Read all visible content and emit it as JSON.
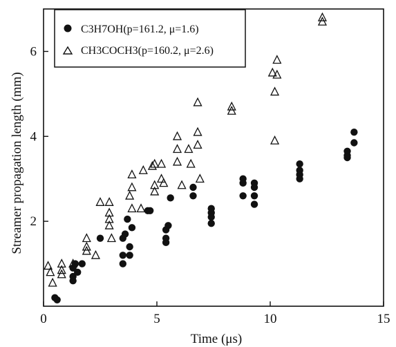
{
  "chart_data": {
    "type": "scatter",
    "title": "",
    "xlabel": "Time (μs)",
    "ylabel": "Streamer propagation length (mm)",
    "xlim": [
      0,
      15
    ],
    "ylim": [
      0,
      7
    ],
    "x_ticks": [
      0,
      5,
      10,
      15
    ],
    "y_ticks": [
      2,
      4,
      6
    ],
    "grid": false,
    "legend_position": "top-left",
    "series": [
      {
        "name": "C3H7OH(p=161.2, μ=1.6)",
        "marker": "filled-circle",
        "color": "#111111",
        "points": [
          [
            0.5,
            0.2
          ],
          [
            0.6,
            0.15
          ],
          [
            1.3,
            0.9
          ],
          [
            1.3,
            0.7
          ],
          [
            1.3,
            0.6
          ],
          [
            1.4,
            1.0
          ],
          [
            1.5,
            0.8
          ],
          [
            1.7,
            1.0
          ],
          [
            2.5,
            1.6
          ],
          [
            3.5,
            1.6
          ],
          [
            3.5,
            1.0
          ],
          [
            3.5,
            1.2
          ],
          [
            3.6,
            1.7
          ],
          [
            3.7,
            2.05
          ],
          [
            3.8,
            1.4
          ],
          [
            3.8,
            1.2
          ],
          [
            3.9,
            1.85
          ],
          [
            4.6,
            2.25
          ],
          [
            4.7,
            2.25
          ],
          [
            5.4,
            1.8
          ],
          [
            5.4,
            1.6
          ],
          [
            5.4,
            1.5
          ],
          [
            5.5,
            1.9
          ],
          [
            5.6,
            2.55
          ],
          [
            6.6,
            2.8
          ],
          [
            6.6,
            2.6
          ],
          [
            7.4,
            2.3
          ],
          [
            7.4,
            2.2
          ],
          [
            7.4,
            2.1
          ],
          [
            7.4,
            1.95
          ],
          [
            8.8,
            3.0
          ],
          [
            8.8,
            2.9
          ],
          [
            8.8,
            2.6
          ],
          [
            9.3,
            2.9
          ],
          [
            9.3,
            2.8
          ],
          [
            9.3,
            2.6
          ],
          [
            9.3,
            2.4
          ],
          [
            11.3,
            3.35
          ],
          [
            11.3,
            3.2
          ],
          [
            11.3,
            3.1
          ],
          [
            11.3,
            3.0
          ],
          [
            13.4,
            3.65
          ],
          [
            13.4,
            3.55
          ],
          [
            13.4,
            3.5
          ],
          [
            13.7,
            4.1
          ],
          [
            13.7,
            3.85
          ]
        ]
      },
      {
        "name": "CH3COCH3(p=160.2, μ=2.6)",
        "marker": "open-triangle",
        "color": "#111111",
        "points": [
          [
            0.2,
            0.95
          ],
          [
            0.3,
            0.8
          ],
          [
            0.4,
            0.55
          ],
          [
            0.8,
            1.0
          ],
          [
            0.8,
            0.85
          ],
          [
            0.8,
            0.75
          ],
          [
            1.3,
            1.0
          ],
          [
            1.9,
            1.6
          ],
          [
            1.9,
            1.4
          ],
          [
            1.9,
            1.3
          ],
          [
            2.3,
            1.2
          ],
          [
            2.5,
            2.45
          ],
          [
            2.9,
            2.45
          ],
          [
            2.9,
            2.2
          ],
          [
            2.9,
            2.05
          ],
          [
            2.9,
            1.9
          ],
          [
            3.0,
            1.6
          ],
          [
            3.8,
            2.6
          ],
          [
            3.9,
            3.1
          ],
          [
            3.9,
            2.8
          ],
          [
            3.9,
            2.3
          ],
          [
            4.3,
            2.3
          ],
          [
            4.4,
            3.2
          ],
          [
            4.8,
            3.3
          ],
          [
            4.9,
            3.35
          ],
          [
            4.9,
            2.85
          ],
          [
            4.9,
            2.7
          ],
          [
            5.2,
            3.35
          ],
          [
            5.2,
            3.0
          ],
          [
            5.3,
            2.9
          ],
          [
            5.9,
            4.0
          ],
          [
            5.9,
            3.7
          ],
          [
            5.9,
            3.4
          ],
          [
            6.1,
            2.85
          ],
          [
            6.4,
            3.7
          ],
          [
            6.5,
            3.35
          ],
          [
            6.8,
            4.8
          ],
          [
            6.8,
            4.1
          ],
          [
            6.8,
            3.8
          ],
          [
            6.9,
            3.0
          ],
          [
            8.3,
            4.7
          ],
          [
            8.3,
            4.6
          ],
          [
            10.1,
            5.5
          ],
          [
            10.2,
            5.05
          ],
          [
            10.2,
            3.9
          ],
          [
            10.3,
            5.8
          ],
          [
            10.3,
            5.45
          ],
          [
            12.3,
            6.8
          ],
          [
            12.3,
            6.7
          ]
        ]
      }
    ]
  }
}
